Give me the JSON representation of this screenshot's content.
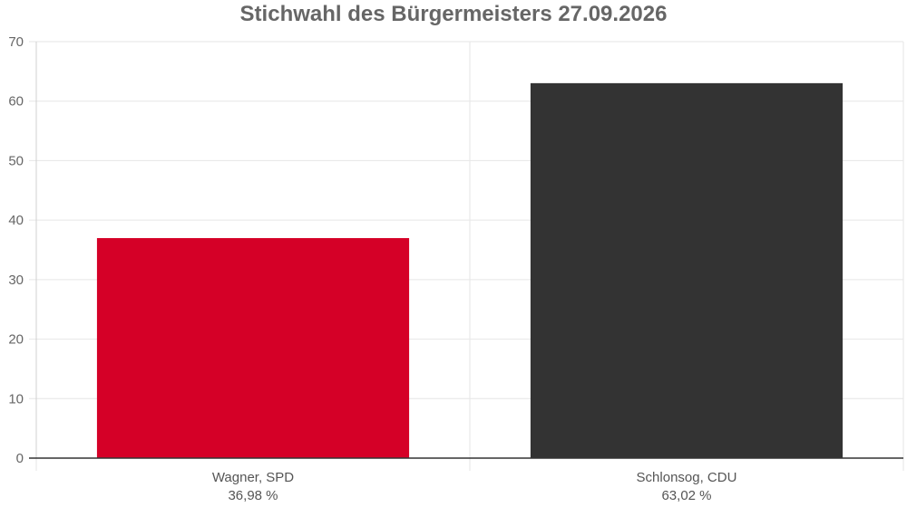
{
  "chart_data": {
    "type": "bar",
    "title": "Stichwahl des Bürgermeisters 27.09.2026",
    "xlabel": "",
    "ylabel": "",
    "categories": [
      {
        "name": "Wagner, SPD",
        "value_label": "36,98 %"
      },
      {
        "name": "Schlonsog, CDU",
        "value_label": "63,02 %"
      }
    ],
    "values": [
      36.98,
      63.02
    ],
    "colors": [
      "#d50027",
      "#333333"
    ],
    "ylim": [
      0,
      70
    ],
    "yticks": [
      0,
      10,
      20,
      30,
      40,
      50,
      60,
      70
    ],
    "grid": true,
    "legend": "none"
  }
}
